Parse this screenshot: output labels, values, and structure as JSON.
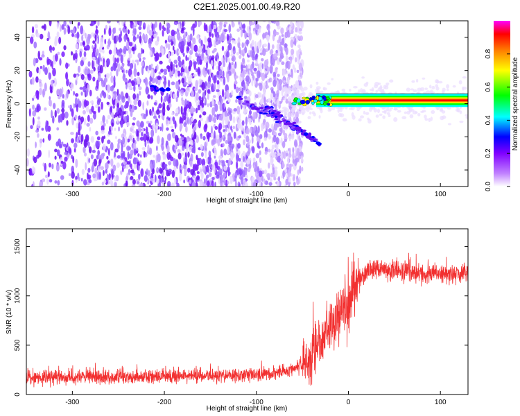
{
  "chart_data": [
    {
      "type": "heatmap",
      "title": "C2E1.2025.001.00.49.R20",
      "xlabel": "Height of straight line (km)",
      "ylabel": "Frequency (Hz)",
      "xlim": [
        -350,
        130
      ],
      "ylim": [
        -50,
        50
      ],
      "xticks": [
        -300,
        -200,
        -100,
        0,
        100
      ],
      "yticks": [
        -40,
        -20,
        0,
        20,
        40
      ],
      "colorbar": {
        "label": "Normalized spectral amplitude",
        "range": [
          0,
          1
        ],
        "ticks": [
          "0.0",
          "0.2",
          "0.4",
          "0.6",
          "0.8"
        ],
        "colors": [
          "#ffffff",
          "#8000ff",
          "#0000ff",
          "#00ffff",
          "#00ff00",
          "#ffff00",
          "#ff8000",
          "#ff0000",
          "#ff00ff"
        ]
      },
      "features": {
        "noise_region_x": [
          -350,
          -70
        ],
        "signal_line_freq_hz": 2,
        "signal_onset_x": -60,
        "branches": [
          {
            "x": [
              -120,
              -40
            ],
            "y": [
              3,
              -20
            ]
          },
          {
            "x": [
              -90,
              -30
            ],
            "y": [
              -2,
              -25
            ]
          }
        ]
      }
    },
    {
      "type": "line",
      "title": "",
      "xlabel": "Height of straight line (km)",
      "ylabel": "SNR (10 * v/v)",
      "xlim": [
        -350,
        130
      ],
      "ylim": [
        0,
        1680
      ],
      "xticks": [
        -300,
        -200,
        -100,
        0,
        100
      ],
      "yticks": [
        0,
        500,
        1000,
        1500
      ],
      "color": "#f23030",
      "profile": {
        "x": [
          -350,
          -300,
          -250,
          -200,
          -150,
          -100,
          -70,
          -50,
          -40,
          -30,
          -20,
          -10,
          0,
          10,
          20,
          30,
          50,
          80,
          100,
          130
        ],
        "y": [
          170,
          175,
          180,
          185,
          190,
          200,
          230,
          300,
          400,
          550,
          700,
          800,
          950,
          1150,
          1250,
          1280,
          1260,
          1230,
          1220,
          1230
        ]
      }
    }
  ]
}
